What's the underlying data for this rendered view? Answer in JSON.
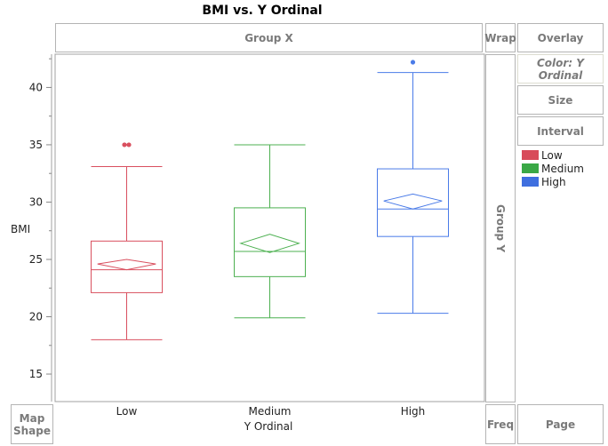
{
  "zones": {
    "group_x": "Group X",
    "wrap": "Wrap",
    "overlay": "Overlay",
    "color": "Color: Y Ordinal",
    "size": "Size",
    "interval": "Interval",
    "group_y": "Group Y",
    "map_shape": "Map Shape",
    "freq": "Freq",
    "page": "Page"
  },
  "legend": [
    {
      "label": "Low",
      "color": "#d84b5a"
    },
    {
      "label": "Medium",
      "color": "#3aa846"
    },
    {
      "label": "High",
      "color": "#3f6fdf"
    }
  ],
  "chart_data": {
    "type": "box",
    "title": "BMI vs. Y Ordinal",
    "xlabel": "Y Ordinal",
    "ylabel": "BMI",
    "categories": [
      "Low",
      "Medium",
      "High"
    ],
    "ylim": [
      12.6,
      42.9
    ],
    "yticks": [
      15,
      20,
      25,
      30,
      35,
      40
    ],
    "series": [
      {
        "name": "Low",
        "color": "#d9505f",
        "min": 18.0,
        "q1": 22.1,
        "median": 24.1,
        "q3": 26.6,
        "max": 33.1,
        "mean": 24.6,
        "ci": [
          24.1,
          25.0
        ],
        "outliers": [
          35.0,
          35.0
        ]
      },
      {
        "name": "Medium",
        "color": "#4cb050",
        "min": 19.9,
        "q1": 23.5,
        "median": 25.7,
        "q3": 29.5,
        "max": 35.0,
        "mean": 26.4,
        "ci": [
          25.6,
          27.2
        ],
        "outliers": []
      },
      {
        "name": "High",
        "color": "#4a7be8",
        "min": 20.3,
        "q1": 27.0,
        "median": 29.4,
        "q3": 32.9,
        "max": 41.3,
        "mean": 30.1,
        "ci": [
          29.4,
          30.7
        ],
        "outliers": [
          42.2
        ]
      }
    ]
  }
}
